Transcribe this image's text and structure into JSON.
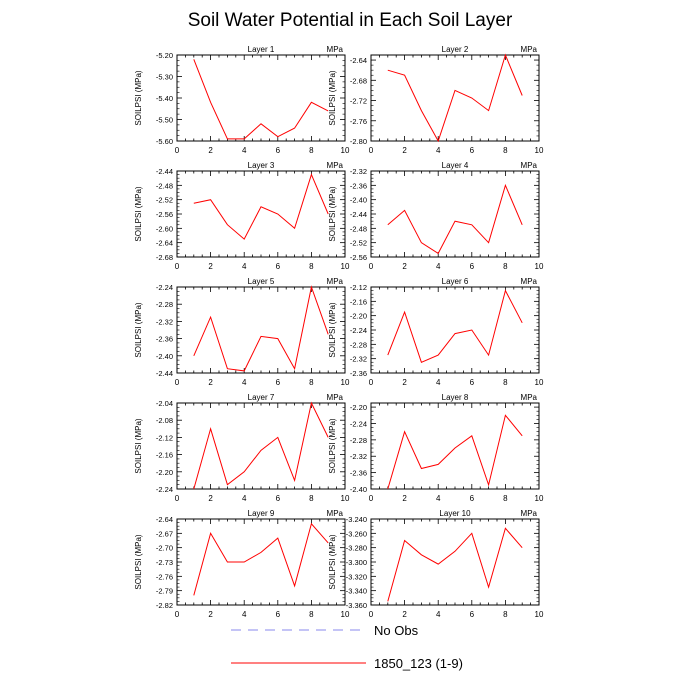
{
  "page": {
    "title": "Soil Water Potential in Each Soil Layer"
  },
  "colors": {
    "model_line": "#ff0000",
    "obs_line": "#8888ee",
    "axis": "#000000"
  },
  "legend": [
    {
      "label": "No Obs",
      "style": "dashed",
      "color": "#8888ee"
    },
    {
      "label": "1850_123 (1-9)",
      "style": "solid",
      "color": "#ff0000"
    }
  ],
  "chart_data": [
    {
      "type": "line",
      "title": "Layer 1",
      "units": "MPa",
      "ylabel": "SOILPSI  (MPa)",
      "xlim": [
        0,
        10
      ],
      "xticks": [
        0,
        2,
        4,
        6,
        8,
        10
      ],
      "ylim": [
        -5.6,
        -5.2
      ],
      "yticks": [
        "-5.20",
        "-5.30",
        "-5.40",
        "-5.50",
        "-5.60"
      ],
      "series": [
        {
          "name": "1850_123 (1-9)",
          "x": [
            1,
            2,
            3,
            4,
            5,
            6,
            7,
            8,
            9
          ],
          "values": [
            -5.22,
            -5.42,
            -5.59,
            -5.59,
            -5.52,
            -5.58,
            -5.54,
            -5.42,
            -5.46
          ]
        }
      ]
    },
    {
      "type": "line",
      "title": "Layer 2",
      "units": "MPa",
      "ylabel": "SOILPSI  (MPa)",
      "xlim": [
        0,
        10
      ],
      "xticks": [
        0,
        2,
        4,
        6,
        8,
        10
      ],
      "ylim": [
        -2.8,
        -2.63
      ],
      "yticks": [
        "-2.64",
        "-2.68",
        "-2.72",
        "-2.76",
        "-2.80"
      ],
      "series": [
        {
          "name": "1850_123 (1-9)",
          "x": [
            1,
            2,
            3,
            4,
            5,
            6,
            7,
            8,
            9
          ],
          "values": [
            -2.66,
            -2.67,
            -2.74,
            -2.8,
            -2.7,
            -2.715,
            -2.74,
            -2.63,
            -2.71
          ]
        }
      ]
    },
    {
      "type": "line",
      "title": "Layer 3",
      "units": "MPa",
      "ylabel": "SOILPSI  (MPa)",
      "xlim": [
        0,
        10
      ],
      "xticks": [
        0,
        2,
        4,
        6,
        8,
        10
      ],
      "ylim": [
        -2.68,
        -2.44
      ],
      "yticks": [
        "-2.44",
        "-2.48",
        "-2.52",
        "-2.56",
        "-2.60",
        "-2.64",
        "-2.68"
      ],
      "series": [
        {
          "name": "1850_123 (1-9)",
          "x": [
            1,
            2,
            3,
            4,
            5,
            6,
            7,
            8,
            9
          ],
          "values": [
            -2.53,
            -2.52,
            -2.59,
            -2.63,
            -2.54,
            -2.56,
            -2.6,
            -2.45,
            -2.56
          ]
        }
      ]
    },
    {
      "type": "line",
      "title": "Layer 4",
      "units": "MPa",
      "ylabel": "SOILPSI  (MPa)",
      "xlim": [
        0,
        10
      ],
      "xticks": [
        0,
        2,
        4,
        6,
        8,
        10
      ],
      "ylim": [
        -2.56,
        -2.32
      ],
      "yticks": [
        "-2.32",
        "-2.36",
        "-2.40",
        "-2.44",
        "-2.48",
        "-2.52",
        "-2.56"
      ],
      "series": [
        {
          "name": "1850_123 (1-9)",
          "x": [
            1,
            2,
            3,
            4,
            5,
            6,
            7,
            8,
            9
          ],
          "values": [
            -2.47,
            -2.43,
            -2.52,
            -2.55,
            -2.46,
            -2.47,
            -2.52,
            -2.36,
            -2.47
          ]
        }
      ]
    },
    {
      "type": "line",
      "title": "Layer 5",
      "units": "MPa",
      "ylabel": "SOILPSI  (MPa)",
      "xlim": [
        0,
        10
      ],
      "xticks": [
        0,
        2,
        4,
        6,
        8,
        10
      ],
      "ylim": [
        -2.44,
        -2.24
      ],
      "yticks": [
        "-2.24",
        "-2.28",
        "-2.32",
        "-2.36",
        "-2.40",
        "-2.44"
      ],
      "series": [
        {
          "name": "1850_123 (1-9)",
          "x": [
            1,
            2,
            3,
            4,
            5,
            6,
            7,
            8,
            9
          ],
          "values": [
            -2.4,
            -2.31,
            -2.43,
            -2.435,
            -2.355,
            -2.36,
            -2.43,
            -2.24,
            -2.35
          ]
        }
      ]
    },
    {
      "type": "line",
      "title": "Layer 6",
      "units": "MPa",
      "ylabel": "SOILPSI  (MPa)",
      "xlim": [
        0,
        10
      ],
      "xticks": [
        0,
        2,
        4,
        6,
        8,
        10
      ],
      "ylim": [
        -2.36,
        -2.12
      ],
      "yticks": [
        "-2.12",
        "-2.16",
        "-2.20",
        "-2.24",
        "-2.28",
        "-2.32",
        "-2.36"
      ],
      "series": [
        {
          "name": "1850_123 (1-9)",
          "x": [
            1,
            2,
            3,
            4,
            5,
            6,
            7,
            8,
            9
          ],
          "values": [
            -2.31,
            -2.19,
            -2.33,
            -2.31,
            -2.25,
            -2.24,
            -2.31,
            -2.13,
            -2.22
          ]
        }
      ]
    },
    {
      "type": "line",
      "title": "Layer 7",
      "units": "MPa",
      "ylabel": "SOILPSI  (MPa)",
      "xlim": [
        0,
        10
      ],
      "xticks": [
        0,
        2,
        4,
        6,
        8,
        10
      ],
      "ylim": [
        -2.24,
        -2.04
      ],
      "yticks": [
        "-2.04",
        "-2.08",
        "-2.12",
        "-2.16",
        "-2.20",
        "-2.24"
      ],
      "series": [
        {
          "name": "1850_123 (1-9)",
          "x": [
            1,
            2,
            3,
            4,
            5,
            6,
            7,
            8,
            9
          ],
          "values": [
            -2.24,
            -2.1,
            -2.23,
            -2.2,
            -2.15,
            -2.12,
            -2.22,
            -2.04,
            -2.12
          ]
        }
      ]
    },
    {
      "type": "line",
      "title": "Layer 8",
      "units": "MPa",
      "ylabel": "SOILPSI  (MPa)",
      "xlim": [
        0,
        10
      ],
      "xticks": [
        0,
        2,
        4,
        6,
        8,
        10
      ],
      "ylim": [
        -2.4,
        -2.19
      ],
      "yticks": [
        "-2.20",
        "-2.24",
        "-2.28",
        "-2.32",
        "-2.36",
        "-2.40"
      ],
      "series": [
        {
          "name": "1850_123 (1-9)",
          "x": [
            1,
            2,
            3,
            4,
            5,
            6,
            7,
            8,
            9
          ],
          "values": [
            -2.4,
            -2.26,
            -2.35,
            -2.34,
            -2.3,
            -2.27,
            -2.39,
            -2.22,
            -2.27
          ]
        }
      ]
    },
    {
      "type": "line",
      "title": "Layer 9",
      "units": "MPa",
      "ylabel": "SOILPSI  (MPa)",
      "xlim": [
        0,
        10
      ],
      "xticks": [
        0,
        2,
        4,
        6,
        8,
        10
      ],
      "ylim": [
        -2.82,
        -2.64
      ],
      "yticks": [
        "-2.64",
        "-2.67",
        "-2.70",
        "-2.73",
        "-2.76",
        "-2.79",
        "-2.82"
      ],
      "series": [
        {
          "name": "1850_123 (1-9)",
          "x": [
            1,
            2,
            3,
            4,
            5,
            6,
            7,
            8,
            9
          ],
          "values": [
            -2.8,
            -2.67,
            -2.73,
            -2.73,
            -2.71,
            -2.68,
            -2.78,
            -2.65,
            -2.69
          ]
        }
      ]
    },
    {
      "type": "line",
      "title": "Layer 10",
      "units": "MPa",
      "ylabel": "SOILPSI  (MPa)",
      "xlim": [
        0,
        10
      ],
      "xticks": [
        0,
        2,
        4,
        6,
        8,
        10
      ],
      "ylim": [
        -3.36,
        -3.24
      ],
      "yticks": [
        "-3.240",
        "-3.260",
        "-3.280",
        "-3.300",
        "-3.320",
        "-3.340",
        "-3.360"
      ],
      "series": [
        {
          "name": "1850_123 (1-9)",
          "x": [
            1,
            2,
            3,
            4,
            5,
            6,
            7,
            8,
            9
          ],
          "values": [
            -3.355,
            -3.27,
            -3.29,
            -3.303,
            -3.285,
            -3.26,
            -3.335,
            -3.253,
            -3.28
          ]
        }
      ]
    }
  ]
}
